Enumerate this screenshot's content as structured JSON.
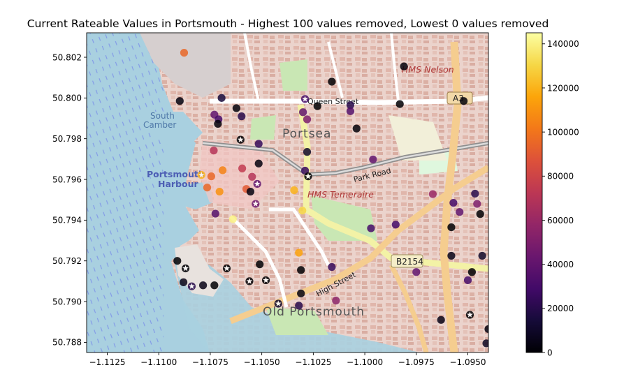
{
  "chart_data": {
    "type": "scatter",
    "title": "Current Rateable Values in Portsmouth - Highest 100 values removed, Lowest  0 values removed",
    "xlabel": "",
    "ylabel": "",
    "xlim": [
      -1.1135,
      -1.094
    ],
    "ylim": [
      50.7875,
      50.8032
    ],
    "xticks": [
      -1.1125,
      -1.11,
      -1.1075,
      -1.105,
      -1.1025,
      -1.1,
      -1.0975,
      -1.095
    ],
    "xtick_labels": [
      "−1.1125",
      "−1.1100",
      "−1.1075",
      "−1.1050",
      "−1.1025",
      "−1.1000",
      "−1.0975",
      "−1.0950"
    ],
    "yticks": [
      50.788,
      50.79,
      50.792,
      50.794,
      50.796,
      50.798,
      50.8,
      50.802
    ],
    "ytick_labels": [
      "50.788",
      "50.790",
      "50.792",
      "50.794",
      "50.796",
      "50.798",
      "50.800",
      "50.802"
    ],
    "grid": false,
    "basemap": "OpenStreetMap",
    "colormap": "inferno",
    "colorbar": {
      "range": [
        0,
        145000
      ],
      "ticks": [
        0,
        20000,
        40000,
        60000,
        80000,
        100000,
        120000,
        140000
      ],
      "tick_labels": [
        "0",
        "20000",
        "40000",
        "60000",
        "80000",
        "100000",
        "120000",
        "140000"
      ]
    },
    "map_labels": [
      "HMS Nelson",
      "Queen Street",
      "Portsea",
      "South",
      "Camber",
      "Portsmouth",
      "Harbour",
      "Park Road",
      "HMS Temeraire",
      "B2154",
      "High Street",
      "Old Portsmouth",
      "A3"
    ],
    "points": [
      {
        "x": -1.10877,
        "y": 50.80222,
        "value": 95000,
        "marker": "circle"
      },
      {
        "x": -1.10898,
        "y": 50.79985,
        "value": 3000,
        "marker": "circle"
      },
      {
        "x": -1.10695,
        "y": 50.8,
        "value": 15000,
        "marker": "circle"
      },
      {
        "x": -1.10623,
        "y": 50.7995,
        "value": 2000,
        "marker": "circle"
      },
      {
        "x": -1.10598,
        "y": 50.7991,
        "value": 20000,
        "marker": "circle"
      },
      {
        "x": -1.1073,
        "y": 50.79918,
        "value": 40000,
        "marker": "circle"
      },
      {
        "x": -1.1071,
        "y": 50.79895,
        "value": 30000,
        "marker": "circle"
      },
      {
        "x": -1.10713,
        "y": 50.79873,
        "value": 2000,
        "marker": "circle"
      },
      {
        "x": -1.10603,
        "y": 50.79795,
        "value": 0,
        "marker": "star"
      },
      {
        "x": -1.10515,
        "y": 50.79775,
        "value": 25000,
        "marker": "circle"
      },
      {
        "x": -1.10733,
        "y": 50.79742,
        "value": 70000,
        "marker": "circle"
      },
      {
        "x": -1.10515,
        "y": 50.79678,
        "value": 3000,
        "marker": "circle"
      },
      {
        "x": -1.10595,
        "y": 50.79654,
        "value": 75000,
        "marker": "circle"
      },
      {
        "x": -1.10547,
        "y": 50.79613,
        "value": 70000,
        "marker": "circle"
      },
      {
        "x": -1.1069,
        "y": 50.79645,
        "value": 105000,
        "marker": "circle"
      },
      {
        "x": -1.10745,
        "y": 50.79615,
        "value": 95000,
        "marker": "circle"
      },
      {
        "x": -1.10793,
        "y": 50.79622,
        "value": 120000,
        "marker": "star"
      },
      {
        "x": -1.10522,
        "y": 50.79578,
        "value": 40000,
        "marker": "star"
      },
      {
        "x": -1.10575,
        "y": 50.79553,
        "value": 90000,
        "marker": "circle"
      },
      {
        "x": -1.10555,
        "y": 50.7954,
        "value": 3000,
        "marker": "circle"
      },
      {
        "x": -1.10705,
        "y": 50.7954,
        "value": 110000,
        "marker": "circle"
      },
      {
        "x": -1.10765,
        "y": 50.7956,
        "value": 95000,
        "marker": "circle"
      },
      {
        "x": -1.10343,
        "y": 50.79547,
        "value": 120000,
        "marker": "circle"
      },
      {
        "x": -1.1053,
        "y": 50.7948,
        "value": 45000,
        "marker": "star"
      },
      {
        "x": -1.10725,
        "y": 50.79432,
        "value": 35000,
        "marker": "circle"
      },
      {
        "x": -1.1064,
        "y": 50.79405,
        "value": 140000,
        "marker": "circle"
      },
      {
        "x": -1.10303,
        "y": 50.79447,
        "value": 130000,
        "marker": "circle"
      },
      {
        "x": -1.1029,
        "y": 50.79995,
        "value": 30000,
        "marker": "star"
      },
      {
        "x": -1.1023,
        "y": 50.7996,
        "value": 0,
        "marker": "circle"
      },
      {
        "x": -1.1016,
        "y": 50.8008,
        "value": 0,
        "marker": "circle"
      },
      {
        "x": -1.103,
        "y": 50.7993,
        "value": 40000,
        "marker": "circle"
      },
      {
        "x": -1.1028,
        "y": 50.79895,
        "value": 50000,
        "marker": "circle"
      },
      {
        "x": -1.1028,
        "y": 50.79735,
        "value": 10000,
        "marker": "circle"
      },
      {
        "x": -1.1029,
        "y": 50.79643,
        "value": 25000,
        "marker": "circle"
      },
      {
        "x": -1.10275,
        "y": 50.79615,
        "value": 0,
        "marker": "star"
      },
      {
        "x": -1.1007,
        "y": 50.79965,
        "value": 20000,
        "marker": "circle"
      },
      {
        "x": -1.1007,
        "y": 50.79935,
        "value": 35000,
        "marker": "circle"
      },
      {
        "x": -1.1004,
        "y": 50.7985,
        "value": 2000,
        "marker": "circle"
      },
      {
        "x": -1.0996,
        "y": 50.79698,
        "value": 40000,
        "marker": "circle"
      },
      {
        "x": -1.0983,
        "y": 50.7997,
        "value": 0,
        "marker": "circle"
      },
      {
        "x": -1.0981,
        "y": 50.80155,
        "value": 2000,
        "marker": "circle"
      },
      {
        "x": -1.0952,
        "y": 50.79985,
        "value": 2000,
        "marker": "circle"
      },
      {
        "x": -1.0985,
        "y": 50.79378,
        "value": 30000,
        "marker": "circle"
      },
      {
        "x": -1.0997,
        "y": 50.7936,
        "value": 30000,
        "marker": "circle"
      },
      {
        "x": -1.0967,
        "y": 50.79528,
        "value": 60000,
        "marker": "circle"
      },
      {
        "x": -1.0957,
        "y": 50.79485,
        "value": 30000,
        "marker": "circle"
      },
      {
        "x": -1.0954,
        "y": 50.7944,
        "value": 40000,
        "marker": "circle"
      },
      {
        "x": -1.09465,
        "y": 50.7953,
        "value": 20000,
        "marker": "circle"
      },
      {
        "x": -1.09455,
        "y": 50.7948,
        "value": 50000,
        "marker": "circle"
      },
      {
        "x": -1.0944,
        "y": 50.7943,
        "value": 0,
        "marker": "circle"
      },
      {
        "x": -1.0958,
        "y": 50.79365,
        "value": 0,
        "marker": "circle"
      },
      {
        "x": -1.0958,
        "y": 50.79225,
        "value": 5000,
        "marker": "circle"
      },
      {
        "x": -1.0943,
        "y": 50.79225,
        "value": 10000,
        "marker": "circle"
      },
      {
        "x": -1.0948,
        "y": 50.79145,
        "value": 0,
        "marker": "circle"
      },
      {
        "x": -1.095,
        "y": 50.79105,
        "value": 30000,
        "marker": "circle"
      },
      {
        "x": -1.0975,
        "y": 50.79145,
        "value": 40000,
        "marker": "circle"
      },
      {
        "x": -1.0963,
        "y": 50.7891,
        "value": 5000,
        "marker": "circle"
      },
      {
        "x": -1.0949,
        "y": 50.78935,
        "value": 0,
        "marker": "star"
      },
      {
        "x": -1.094,
        "y": 50.78865,
        "value": 3000,
        "marker": "circle"
      },
      {
        "x": -1.0941,
        "y": 50.78795,
        "value": 8000,
        "marker": "circle"
      },
      {
        "x": -1.1016,
        "y": 50.7917,
        "value": 25000,
        "marker": "circle"
      },
      {
        "x": -1.1014,
        "y": 50.79005,
        "value": 55000,
        "marker": "circle"
      },
      {
        "x": -1.1032,
        "y": 50.7924,
        "value": 115000,
        "marker": "circle"
      },
      {
        "x": -1.1031,
        "y": 50.79155,
        "value": 0,
        "marker": "circle"
      },
      {
        "x": -1.1031,
        "y": 50.7904,
        "value": 3000,
        "marker": "circle"
      },
      {
        "x": -1.1032,
        "y": 50.7898,
        "value": 20000,
        "marker": "circle"
      },
      {
        "x": -1.1042,
        "y": 50.7899,
        "value": 10000,
        "marker": "star"
      },
      {
        "x": -1.1051,
        "y": 50.79183,
        "value": 0,
        "marker": "circle"
      },
      {
        "x": -1.1048,
        "y": 50.79105,
        "value": 0,
        "marker": "star"
      },
      {
        "x": -1.1056,
        "y": 50.791,
        "value": 0,
        "marker": "star"
      },
      {
        "x": -1.1067,
        "y": 50.79163,
        "value": 0,
        "marker": "star"
      },
      {
        "x": -1.1091,
        "y": 50.792,
        "value": 0,
        "marker": "circle"
      },
      {
        "x": -1.1087,
        "y": 50.79163,
        "value": 0,
        "marker": "star"
      },
      {
        "x": -1.1088,
        "y": 50.79095,
        "value": 5000,
        "marker": "circle"
      },
      {
        "x": -1.1084,
        "y": 50.79075,
        "value": 20000,
        "marker": "star"
      },
      {
        "x": -1.10785,
        "y": 50.7908,
        "value": 5000,
        "marker": "circle"
      },
      {
        "x": -1.1073,
        "y": 50.7908,
        "value": 0,
        "marker": "circle"
      }
    ]
  }
}
